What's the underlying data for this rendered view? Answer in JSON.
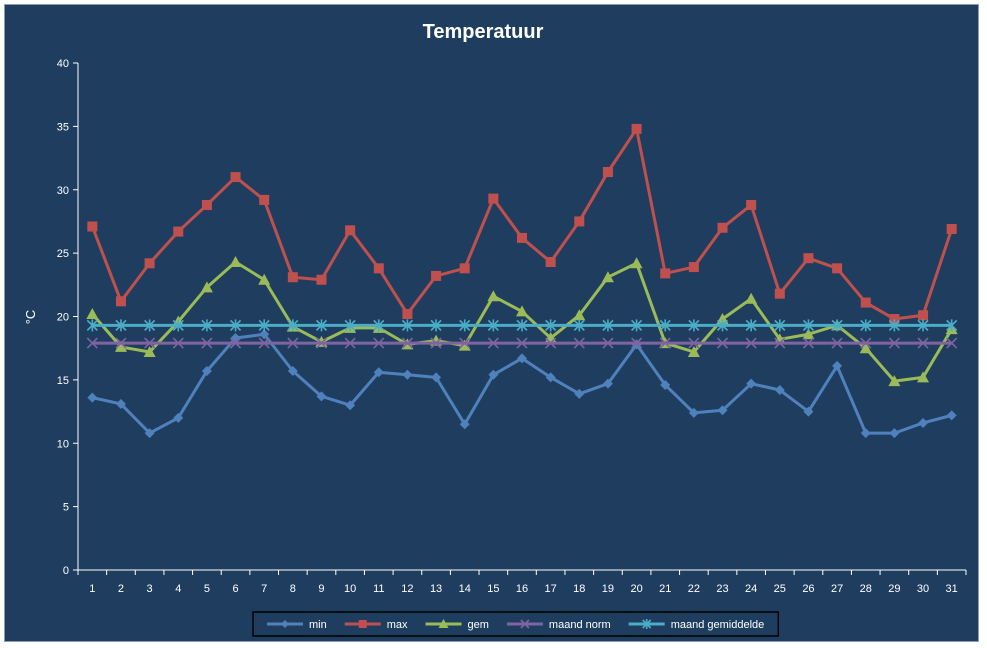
{
  "chart_data": {
    "type": "line",
    "title": "Temperatuur",
    "xlabel": "",
    "ylabel": "°C",
    "ylim": [
      0,
      40
    ],
    "yticks": [
      0,
      5,
      10,
      15,
      20,
      25,
      30,
      35,
      40
    ],
    "categories": [
      "1",
      "2",
      "3",
      "4",
      "5",
      "6",
      "7",
      "8",
      "9",
      "10",
      "11",
      "12",
      "13",
      "14",
      "15",
      "16",
      "17",
      "18",
      "19",
      "20",
      "21",
      "22",
      "23",
      "24",
      "25",
      "26",
      "27",
      "28",
      "29",
      "30",
      "31"
    ],
    "grid": false,
    "legend_position": "bottom",
    "series": [
      {
        "name": "min",
        "color": "#4f81bd",
        "marker": "diamond",
        "values": [
          13.6,
          13.1,
          10.8,
          12.0,
          15.7,
          18.3,
          18.6,
          15.7,
          13.7,
          13.0,
          15.6,
          15.4,
          15.2,
          11.5,
          15.4,
          16.7,
          15.2,
          13.9,
          14.7,
          17.8,
          14.6,
          12.4,
          12.6,
          14.7,
          14.2,
          12.5,
          16.1,
          10.8,
          10.8,
          11.6,
          12.2
        ]
      },
      {
        "name": "max",
        "color": "#c0504d",
        "marker": "square",
        "values": [
          27.1,
          21.2,
          24.2,
          26.7,
          28.8,
          31.0,
          29.2,
          23.1,
          22.9,
          26.8,
          23.8,
          20.2,
          23.2,
          23.8,
          29.3,
          26.2,
          24.3,
          27.5,
          31.4,
          34.8,
          23.4,
          23.9,
          27.0,
          28.8,
          21.8,
          24.6,
          23.8,
          21.1,
          19.8,
          20.1,
          26.9
        ]
      },
      {
        "name": "gem",
        "color": "#9bbb59",
        "marker": "triangle",
        "values": [
          20.2,
          17.6,
          17.2,
          19.6,
          22.3,
          24.3,
          22.9,
          19.2,
          18.0,
          19.1,
          19.1,
          17.8,
          18.1,
          17.7,
          21.6,
          20.4,
          18.3,
          20.1,
          23.1,
          24.2,
          17.9,
          17.2,
          19.8,
          21.4,
          18.2,
          18.6,
          19.3,
          17.5,
          14.9,
          15.2,
          19.0
        ]
      },
      {
        "name": "maand norm",
        "color": "#8064a2",
        "marker": "x",
        "values": [
          17.9,
          17.9,
          17.9,
          17.9,
          17.9,
          17.9,
          17.9,
          17.9,
          17.9,
          17.9,
          17.9,
          17.9,
          17.9,
          17.9,
          17.9,
          17.9,
          17.9,
          17.9,
          17.9,
          17.9,
          17.9,
          17.9,
          17.9,
          17.9,
          17.9,
          17.9,
          17.9,
          17.9,
          17.9,
          17.9,
          17.9
        ]
      },
      {
        "name": "maand gemiddelde",
        "color": "#4bacc6",
        "marker": "star",
        "values": [
          19.3,
          19.3,
          19.3,
          19.3,
          19.3,
          19.3,
          19.3,
          19.3,
          19.3,
          19.3,
          19.3,
          19.3,
          19.3,
          19.3,
          19.3,
          19.3,
          19.3,
          19.3,
          19.3,
          19.3,
          19.3,
          19.3,
          19.3,
          19.3,
          19.3,
          19.3,
          19.3,
          19.3,
          19.3,
          19.3,
          19.3
        ]
      }
    ]
  },
  "colors": {
    "background": "#1f3e5f",
    "axis": "#ffffff",
    "legend_border": "#000000",
    "legend_background": "#1f3e5f"
  }
}
